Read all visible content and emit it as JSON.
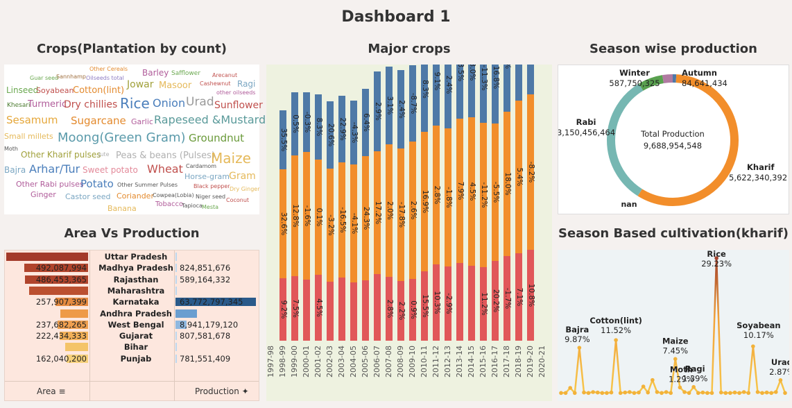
{
  "dashboard_title": "Dashboard 1",
  "panels": {
    "wordcloud_title": "Crops(Plantation by count)",
    "major_title": "Major crops",
    "season_title": "Season wise production",
    "avp_title": "Area Vs Production",
    "kharif_title": "Season Based cultivation(kharif)"
  },
  "wordcloud": {
    "words": [
      {
        "text": "Other Cereals",
        "color": "#e38a2e"
      },
      {
        "text": "Barley",
        "color": "#b05c9a"
      },
      {
        "text": "Safflower",
        "color": "#6aa84f"
      },
      {
        "text": "Arecanut",
        "color": "#c0504d"
      },
      {
        "text": "Guar seed",
        "color": "#6aa84f"
      },
      {
        "text": "Sannhamp",
        "color": "#a07040"
      },
      {
        "text": "Oilseeds total",
        "color": "#8e7cc3"
      },
      {
        "text": "Jowar",
        "color": "#a0a03a"
      },
      {
        "text": "Masoor",
        "color": "#e5b95a"
      },
      {
        "text": "Cashewnut",
        "color": "#c0504d"
      },
      {
        "text": "Ragi",
        "color": "#7aa6c2"
      },
      {
        "text": "Linseed",
        "color": "#6aa84f"
      },
      {
        "text": "Soyabean",
        "color": "#c0504d"
      },
      {
        "text": "Cotton(lint)",
        "color": "#e38a2e"
      },
      {
        "text": "other oilseeds",
        "color": "#b05c9a"
      },
      {
        "text": "Khesari",
        "color": "#4a7a2e"
      },
      {
        "text": "Turmeric",
        "color": "#b05c9a"
      },
      {
        "text": "Dry chillies",
        "color": "#c0504d"
      },
      {
        "text": "Rice",
        "color": "#4a7ebb"
      },
      {
        "text": "Onion",
        "color": "#4a7ebb"
      },
      {
        "text": "Urad",
        "color": "#9a9a9a"
      },
      {
        "text": "Sunflower",
        "color": "#c0504d"
      },
      {
        "text": "Sesamum",
        "color": "#e5a73a"
      },
      {
        "text": "Sugarcane",
        "color": "#e38a2e"
      },
      {
        "text": "Garlic",
        "color": "#b05c9a"
      },
      {
        "text": "Rapeseed &Mustard",
        "color": "#5a9a9a"
      },
      {
        "text": "Small millets",
        "color": "#e5b95a"
      },
      {
        "text": "Moong(Green Gram)",
        "color": "#5a9aaa"
      },
      {
        "text": "Groundnut",
        "color": "#6a9a3a"
      },
      {
        "text": "Moth",
        "color": "#555555"
      },
      {
        "text": "Other Kharif pulses",
        "color": "#a0a03a"
      },
      {
        "text": "Jute",
        "color": "#b0b0b0"
      },
      {
        "text": "Peas & beans (Pulses)",
        "color": "#b0b0b0"
      },
      {
        "text": "Maize",
        "color": "#e5b95a"
      },
      {
        "text": "Cardamom",
        "color": "#555555"
      },
      {
        "text": "Bajra",
        "color": "#7aa6c2"
      },
      {
        "text": "Arhar/Tur",
        "color": "#4a7ebb"
      },
      {
        "text": "Sweet potato",
        "color": "#e38a9a"
      },
      {
        "text": "Wheat",
        "color": "#c0504d"
      },
      {
        "text": "Horse-gram",
        "color": "#7aa6c2"
      },
      {
        "text": "Gram",
        "color": "#e5b95a"
      },
      {
        "text": "Other Rabi pulses",
        "color": "#b05c9a"
      },
      {
        "text": "Potato",
        "color": "#4a7ebb"
      },
      {
        "text": "Other Summer Pulses",
        "color": "#555555"
      },
      {
        "text": "Black pepper",
        "color": "#c0504d"
      },
      {
        "text": "Dry Ginger",
        "color": "#e5b95a"
      },
      {
        "text": "Ginger",
        "color": "#b05c9a"
      },
      {
        "text": "Castor seed",
        "color": "#7aa6c2"
      },
      {
        "text": "Coriander",
        "color": "#e38a2e"
      },
      {
        "text": "Cowpea(Lobia)",
        "color": "#555555"
      },
      {
        "text": "Niger seed",
        "color": "#555555"
      },
      {
        "text": "Coconut",
        "color": "#c0504d"
      },
      {
        "text": "Banana",
        "color": "#e5b95a"
      },
      {
        "text": "Tobacco",
        "color": "#b05c9a"
      },
      {
        "text": "Tapioca",
        "color": "#555555"
      },
      {
        "text": "Mesta",
        "color": "#6aa84f"
      }
    ]
  },
  "avp": {
    "footer_area": "Area",
    "footer_production": "Production",
    "rows": [
      {
        "state": "Uttar Pradesh",
        "area_label": "",
        "production_label": "",
        "area_frac": 1.0,
        "prod_frac": 0.02,
        "area_color": "#a33a2a",
        "prod_color": "#bcd7ef"
      },
      {
        "state": "Madhya Pradesh",
        "area_label": "492,087,994",
        "production_label": "824,851,676",
        "area_frac": 0.78,
        "prod_frac": 0.0,
        "area_color": "#b0442c",
        "prod_color": "#bcd7ef"
      },
      {
        "state": "Rajasthan",
        "area_label": "486,453,365",
        "production_label": "589,164,332",
        "area_frac": 0.77,
        "prod_frac": 0.0,
        "area_color": "#b0442c",
        "prod_color": "#bcd7ef"
      },
      {
        "state": "Maharashtra",
        "area_label": "",
        "production_label": "",
        "area_frac": 0.72,
        "prod_frac": 0.01,
        "area_color": "#bb5030",
        "prod_color": "#bcd7ef"
      },
      {
        "state": "Karnataka",
        "area_label": "257,907,399",
        "production_label": "63,772,797,345",
        "area_frac": 0.4,
        "prod_frac": 1.0,
        "area_color": "#e58a40",
        "prod_color": "#2a5a8a"
      },
      {
        "state": "Andhra Pradesh",
        "area_label": "",
        "production_label": "",
        "area_frac": 0.34,
        "prod_frac": 0.27,
        "area_color": "#ee9a48",
        "prod_color": "#6a9ed0"
      },
      {
        "state": "West Bengal",
        "area_label": "237,682,265",
        "production_label": "8,941,179,120",
        "area_frac": 0.37,
        "prod_frac": 0.14,
        "area_color": "#f0a050",
        "prod_color": "#8fb8e0"
      },
      {
        "state": "Gujarat",
        "area_label": "222,434,333",
        "production_label": "807,581,678",
        "area_frac": 0.35,
        "prod_frac": 0.0,
        "area_color": "#f2b058",
        "prod_color": "#bcd7ef"
      },
      {
        "state": "Bihar",
        "area_label": "",
        "production_label": "",
        "area_frac": 0.28,
        "prod_frac": 0.0,
        "area_color": "#f4c468",
        "prod_color": "#bcd7ef"
      },
      {
        "state": "Punjab",
        "area_label": "162,040,200",
        "production_label": "781,551,409",
        "area_frac": 0.26,
        "prod_frac": 0.0,
        "area_color": "#f6d07a",
        "prod_color": "#bcd7ef"
      }
    ]
  },
  "major_crops": {
    "years": [
      "1997-98",
      "1998-99",
      "1999-00",
      "2000-01",
      "2001-02",
      "2002-03",
      "2003-04",
      "2004-05",
      "2005-06",
      "2006-07",
      "2007-08",
      "2008-09",
      "2009-10",
      "2010-11",
      "2011-12",
      "2012-13",
      "2013-14",
      "2014-15",
      "2015-16",
      "2016-17",
      "2017-18",
      "2018-19",
      "2019-20",
      "2020-21"
    ],
    "red": [
      0,
      90,
      93,
      88,
      95,
      85,
      91,
      84,
      87,
      96,
      92,
      86,
      89,
      100,
      110,
      107,
      112,
      108,
      106,
      115,
      122,
      126,
      131,
      0
    ],
    "orange": [
      0,
      247,
      267,
      272,
      261,
      248,
      257,
      254,
      266,
      273,
      283,
      277,
      287,
      301,
      310,
      306,
      320,
      322,
      314,
      313,
      330,
      346,
      355,
      0
    ],
    "blue": [
      0,
      332,
      358,
      358,
      355,
      345,
      353,
      346,
      363,
      388,
      395,
      390,
      397,
      424,
      438,
      432,
      454,
      454,
      444,
      446,
      484,
      495,
      495,
      0
    ],
    "colors": {
      "red": "#e15759",
      "orange": "#f28e2b",
      "blue": "#4e79a7"
    },
    "red_labels": [
      "",
      "9.2%",
      "7.5%",
      "",
      "4.5%",
      "",
      "",
      "",
      "",
      "",
      "2.8%",
      "2.2%",
      "0.9%",
      "15.5%",
      "10.3%",
      "-2.9%",
      "",
      "",
      "11.2%",
      "20.2%",
      "-1.7%",
      "7.1%",
      "10.8%",
      ""
    ],
    "orange_labels": [
      "",
      "32.6%",
      "12.8%",
      "-1.6%",
      "0.1%",
      "-3.2%",
      "-16.5%",
      "-4.1%",
      "24.3%",
      "17.2%",
      "2.0%",
      "-17.8%",
      "2.6%",
      "16.9%",
      "2.8%",
      "-1.8%",
      "7.9%",
      "4.5%",
      "-11.2%",
      "-5.5%",
      "18.0%",
      "5.4%",
      "-8.2%",
      ""
    ],
    "blue_labels": [
      "",
      "35.5%",
      "0.5%",
      "-0.3%",
      "8.3%",
      "20.6%",
      "22.9%",
      "-4.3%",
      "6.4%",
      "2.9%",
      "3.1%",
      "2.4%",
      "-8.7%",
      "8.3%",
      "9.1%",
      "2.4%",
      "3.5%",
      "3.0%",
      "-11.3%",
      "16.8%",
      "-0.6%",
      "0.4%",
      "13.4%",
      ""
    ]
  },
  "season": {
    "center_label": "Total Production",
    "center_value": "9,688,954,548",
    "segments": [
      {
        "name": "Kharif",
        "value": "5,622,340,392",
        "amount": 5622340392,
        "color": "#f28e2b"
      },
      {
        "name": "Rabi",
        "value": "3,150,456,464",
        "amount": 3150456464,
        "color": "#76b7b2"
      },
      {
        "name": "Winter",
        "value": "587,750,325",
        "amount": 587750325,
        "color": "#59a14f"
      },
      {
        "name": "Autumn",
        "value": "84,641,434",
        "amount": 84641434,
        "color": "#4e79a7"
      },
      {
        "name": "nan",
        "value": "",
        "amount": 243766000,
        "color": "#b07aa1"
      }
    ]
  },
  "kharif": {
    "values": [
      0.1,
      0.1,
      1.2,
      0.1,
      9.87,
      0.2,
      0.1,
      0.3,
      0.2,
      0.1,
      0.1,
      0.2,
      11.52,
      0.1,
      0.2,
      0.3,
      0.1,
      0.2,
      1.5,
      0.2,
      2.9,
      0.3,
      0.1,
      0.3,
      0.1,
      7.45,
      1.29,
      0.3,
      0.1,
      1.39,
      0.1,
      0.2,
      0.1,
      0.1,
      29.23,
      0.2,
      0.1,
      0.1,
      0.2,
      0.1,
      0.3,
      0.1,
      10.17,
      0.3,
      0.1,
      0.2,
      0.1,
      0.3,
      2.87,
      0.1
    ],
    "labels": [
      {
        "name": "Bajra",
        "pct": "9.87%",
        "index": 4
      },
      {
        "name": "Cotton(lint)",
        "pct": "11.52%",
        "index": 12
      },
      {
        "name": "Maize",
        "pct": "7.45%",
        "index": 25
      },
      {
        "name": "Moth",
        "pct": "1.29%",
        "index": 26
      },
      {
        "name": "Ragi",
        "pct": "1.39%",
        "index": 29
      },
      {
        "name": "Rice",
        "pct": "29.23%",
        "index": 34
      },
      {
        "name": "Soyabean",
        "pct": "10.17%",
        "index": 42
      },
      {
        "name": "Urad",
        "pct": "2.87%",
        "index": 48
      }
    ]
  }
}
